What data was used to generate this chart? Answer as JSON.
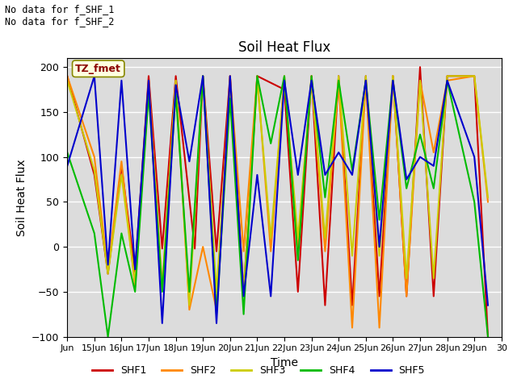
{
  "title": "Soil Heat Flux",
  "xlabel": "Time",
  "ylabel": "Soil Heat Flux",
  "ylim": [
    -100,
    210
  ],
  "xlim": [
    14,
    30
  ],
  "annotation_text": "No data for f_SHF_1\nNo data for f_SHF_2",
  "box_label": "TZ_fmet",
  "background_color": "#dcdcdc",
  "colors": {
    "SHF1": "#cc0000",
    "SHF2": "#ff8800",
    "SHF3": "#cccc00",
    "SHF4": "#00bb00",
    "SHF5": "#0000cc"
  },
  "SHF1": [
    14.0,
    190,
    15.0,
    80,
    15.5,
    -30,
    16.0,
    90,
    16.5,
    -28,
    17.0,
    190,
    17.5,
    -2,
    18.0,
    190,
    18.7,
    -2,
    19.0,
    190,
    19.5,
    -5,
    20.0,
    190,
    20.5,
    -50,
    21.0,
    190,
    22.0,
    175,
    22.5,
    -50,
    23.0,
    190,
    23.5,
    -65,
    24.0,
    190,
    24.5,
    -65,
    25.0,
    190,
    25.5,
    -55,
    26.0,
    190,
    26.5,
    -55,
    27.0,
    200,
    27.5,
    -55,
    28.0,
    190,
    29.0,
    190,
    29.5,
    -100
  ],
  "SHF2": [
    14.0,
    190,
    15.0,
    100,
    15.5,
    -25,
    16.0,
    95,
    16.5,
    -45,
    17.0,
    185,
    17.5,
    -45,
    18.0,
    185,
    18.5,
    -70,
    19.0,
    0,
    19.5,
    -70,
    20.0,
    190,
    20.5,
    -5,
    21.0,
    190,
    21.5,
    -5,
    22.0,
    190,
    22.5,
    -5,
    23.0,
    190,
    23.5,
    -5,
    24.0,
    185,
    24.5,
    -90,
    25.0,
    185,
    25.5,
    -90,
    26.0,
    190,
    26.5,
    -55,
    27.0,
    185,
    27.5,
    105,
    28.0,
    185,
    29.0,
    190,
    29.5,
    50
  ],
  "SHF3": [
    14.0,
    185,
    15.0,
    85,
    15.5,
    -30,
    16.0,
    80,
    16.5,
    -40,
    17.0,
    175,
    17.5,
    -48,
    18.0,
    185,
    18.5,
    -65,
    19.0,
    190,
    19.5,
    -50,
    20.0,
    175,
    20.5,
    -50,
    21.0,
    185,
    21.5,
    10,
    22.0,
    185,
    22.5,
    10,
    23.0,
    185,
    23.5,
    10,
    24.0,
    190,
    24.5,
    -10,
    25.0,
    190,
    25.5,
    -10,
    26.0,
    190,
    26.5,
    -35,
    27.0,
    185,
    27.5,
    -35,
    28.0,
    190,
    29.0,
    190,
    29.5,
    55
  ],
  "SHF4": [
    14.0,
    105,
    15.0,
    15,
    15.5,
    -100,
    16.0,
    15,
    16.5,
    -50,
    17.0,
    170,
    17.5,
    -50,
    18.0,
    170,
    18.5,
    -50,
    19.0,
    190,
    19.5,
    -75,
    20.0,
    165,
    20.5,
    -75,
    21.0,
    190,
    21.5,
    115,
    22.0,
    190,
    22.5,
    -15,
    23.0,
    190,
    23.5,
    55,
    24.0,
    185,
    24.5,
    85,
    25.0,
    185,
    25.5,
    30,
    26.0,
    185,
    26.5,
    65,
    27.0,
    125,
    27.5,
    65,
    28.0,
    185,
    29.0,
    50,
    29.5,
    -100
  ],
  "SHF5": [
    14.0,
    90,
    15.0,
    190,
    15.5,
    -20,
    16.0,
    185,
    16.5,
    -25,
    17.0,
    185,
    17.5,
    -85,
    18.0,
    180,
    18.5,
    95,
    19.0,
    190,
    19.5,
    -85,
    20.0,
    190,
    20.5,
    -55,
    21.0,
    80,
    21.5,
    -55,
    22.0,
    185,
    22.5,
    80,
    23.0,
    185,
    23.5,
    80,
    24.0,
    105,
    24.5,
    80,
    25.0,
    185,
    25.5,
    0,
    26.0,
    185,
    26.5,
    75,
    27.0,
    100,
    27.5,
    90,
    28.0,
    185,
    29.0,
    100,
    29.5,
    -65
  ],
  "xticks": [
    14,
    15,
    16,
    17,
    18,
    19,
    20,
    21,
    22,
    23,
    24,
    25,
    26,
    27,
    28,
    29,
    30
  ],
  "xticklabels": [
    "Jun",
    "15Jun",
    "16Jun",
    "17Jun",
    "18Jun",
    "19Jun",
    "20Jun",
    "21Jun",
    "22Jun",
    "23Jun",
    "24Jun",
    "25Jun",
    "26Jun",
    "27Jun",
    "28Jun",
    "29Jun",
    "30"
  ],
  "yticks": [
    -100,
    -50,
    0,
    50,
    100,
    150,
    200
  ]
}
